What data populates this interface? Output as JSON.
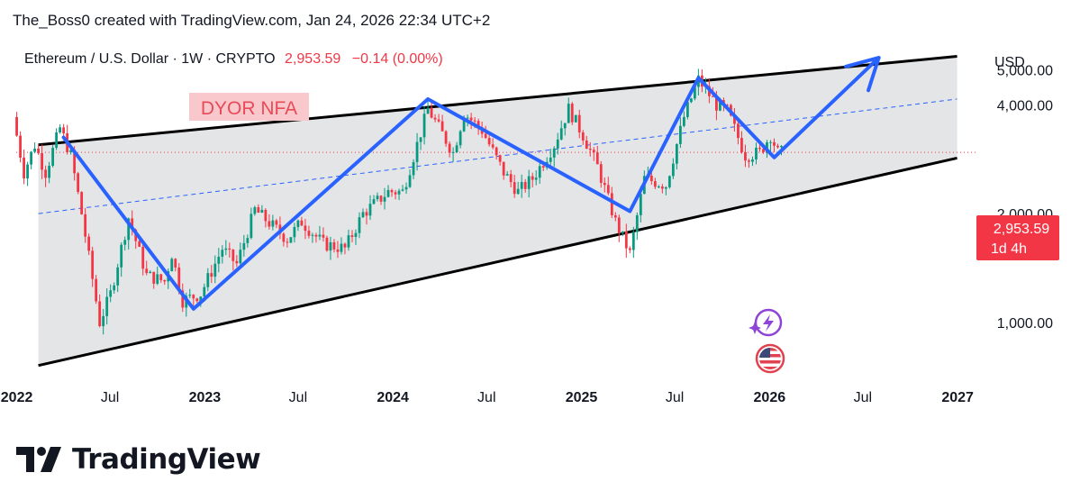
{
  "header": {
    "credit": "The_Boss0 created with TradingView.com, Jan 24, 2026 22:34 UTC+2"
  },
  "legend": {
    "symbol": "Ethereum / U.S. Dollar · 1W · CRYPTO",
    "price": "2,953.59",
    "change": "−0.14 (0.00%)"
  },
  "colors": {
    "up": "#089981",
    "down": "#f23645",
    "drawing": "#2962ff",
    "channel_fill": "#e4e5e7",
    "price_label_bg": "#f23645",
    "note_bg": "#f8c8cc",
    "note_text": "#e84b57"
  },
  "annotation": {
    "note": "DYOR NFA"
  },
  "price_label": {
    "price": "2,953.59",
    "countdown": "1d 4h"
  },
  "brand": {
    "name": "TradingView"
  },
  "icons": [
    "lightning-event-icon",
    "us-flag-icon"
  ],
  "chart_data": {
    "type": "candlestick",
    "symbol": "ETHUSD",
    "interval": "1W",
    "currency": "USD",
    "last_price": 2953.59,
    "y_scale": "log",
    "ylim": [
      700,
      6200
    ],
    "xlim": [
      "2021-12-31",
      "2027-01-20"
    ],
    "y_ticks": [
      {
        "value": 1000,
        "label": "1,000.00"
      },
      {
        "value": 2000,
        "label": "2,000.00"
      },
      {
        "value": 4000,
        "label": "4,000.00"
      },
      {
        "value": 5000,
        "label": "5,000.00"
      }
    ],
    "y_unit_label": "USD",
    "x_ticks": [
      {
        "date": "2022-01-01",
        "label": "2022",
        "bold": true
      },
      {
        "date": "2022-07-01",
        "label": "Jul",
        "bold": false
      },
      {
        "date": "2023-01-01",
        "label": "2023",
        "bold": true
      },
      {
        "date": "2023-07-01",
        "label": "Jul",
        "bold": false
      },
      {
        "date": "2024-01-01",
        "label": "2024",
        "bold": true
      },
      {
        "date": "2024-07-01",
        "label": "Jul",
        "bold": false
      },
      {
        "date": "2025-01-01",
        "label": "2025",
        "bold": true
      },
      {
        "date": "2025-07-01",
        "label": "Jul",
        "bold": false
      },
      {
        "date": "2026-01-01",
        "label": "2026",
        "bold": true
      },
      {
        "date": "2026-07-01",
        "label": "Jul",
        "bold": false
      },
      {
        "date": "2027-01-01",
        "label": "2027",
        "bold": true
      }
    ],
    "price_path": [
      [
        "2022-01-01",
        3700
      ],
      [
        "2022-01-22",
        2600
      ],
      [
        "2022-02-12",
        3100
      ],
      [
        "2022-03-05",
        2600
      ],
      [
        "2022-04-02",
        3450
      ],
      [
        "2022-04-23",
        2900
      ],
      [
        "2022-05-14",
        2000
      ],
      [
        "2022-06-18",
        1000
      ],
      [
        "2022-07-09",
        1200
      ],
      [
        "2022-08-13",
        1950
      ],
      [
        "2022-09-17",
        1350
      ],
      [
        "2022-10-22",
        1300
      ],
      [
        "2022-11-05",
        1550
      ],
      [
        "2022-11-26",
        1150
      ],
      [
        "2022-12-31",
        1200
      ],
      [
        "2023-02-11",
        1600
      ],
      [
        "2023-03-11",
        1450
      ],
      [
        "2023-04-15",
        2050
      ],
      [
        "2023-06-17",
        1700
      ],
      [
        "2023-07-15",
        1900
      ],
      [
        "2023-08-26",
        1650
      ],
      [
        "2023-10-07",
        1600
      ],
      [
        "2023-11-11",
        2000
      ],
      [
        "2023-12-30",
        2300
      ],
      [
        "2024-01-27",
        2300
      ],
      [
        "2024-03-16",
        3900
      ],
      [
        "2024-05-04",
        2950
      ],
      [
        "2024-05-25",
        3800
      ],
      [
        "2024-06-29",
        3400
      ],
      [
        "2024-08-10",
        2600
      ],
      [
        "2024-09-07",
        2300
      ],
      [
        "2024-10-05",
        2500
      ],
      [
        "2024-11-16",
        3100
      ],
      [
        "2024-12-14",
        3900
      ],
      [
        "2025-01-11",
        3300
      ],
      [
        "2025-02-08",
        2700
      ],
      [
        "2025-03-15",
        1900
      ],
      [
        "2025-04-12",
        1550
      ],
      [
        "2025-05-10",
        2500
      ],
      [
        "2025-06-21",
        2400
      ],
      [
        "2025-07-26",
        3700
      ],
      [
        "2025-08-23",
        4700
      ],
      [
        "2025-09-27",
        4000
      ],
      [
        "2025-10-18",
        3850
      ],
      [
        "2025-11-22",
        2900
      ],
      [
        "2025-12-20",
        2950
      ],
      [
        "2026-01-10",
        3300
      ],
      [
        "2026-01-24",
        2953.59
      ]
    ],
    "drawings": {
      "channel_upper": [
        [
          "2022-02-12",
          3100
        ],
        [
          "2026-12-31",
          5450
        ]
      ],
      "channel_lower": [
        [
          "2022-02-12",
          760
        ],
        [
          "2026-12-31",
          2850
        ]
      ],
      "channel_mid_dashed": [
        [
          "2022-02-12",
          2000
        ],
        [
          "2026-12-31",
          4150
        ]
      ],
      "zigzag": [
        [
          "2022-04-02",
          3250
        ],
        [
          "2022-12-10",
          1090
        ],
        [
          "2024-03-09",
          4150
        ],
        [
          "2025-04-05",
          2030
        ],
        [
          "2025-08-16",
          4750
        ],
        [
          "2026-01-10",
          2860
        ],
        [
          "2026-08-01",
          5400
        ]
      ],
      "last_price_line": 2953.59
    }
  }
}
